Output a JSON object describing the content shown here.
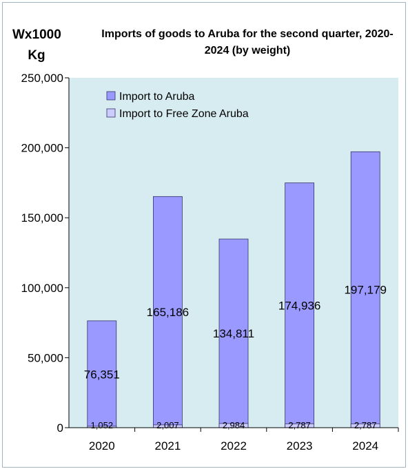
{
  "chart_data": {
    "type": "bar",
    "title": "Imports of goods to Aruba for the second quarter, 2020-2024 (by weight)",
    "ylabel": "Wx1000 Kg",
    "xlabel": "",
    "categories": [
      "2020",
      "2021",
      "2022",
      "2023",
      "2024"
    ],
    "series": [
      {
        "name": "Import to Aruba",
        "values": [
          76351,
          165186,
          134811,
          174936,
          197179
        ],
        "labels": [
          "76,351",
          "165,186",
          "134,811",
          "174,936",
          "197,179"
        ],
        "color": "#9999ff"
      },
      {
        "name": "Import to Free Zone Aruba",
        "values": [
          1052,
          2007,
          2984,
          2787,
          2787
        ],
        "labels": [
          "1,052",
          "2,007",
          "2,984",
          "2,787",
          "2,787"
        ],
        "color": "#ccccff"
      }
    ],
    "ylim": [
      0,
      250000
    ],
    "yticks": [
      "0",
      "50,000",
      "100,000",
      "150,000",
      "200,000",
      "250,000"
    ],
    "plot_background": "#d6ecf0",
    "legend_position": "top-left",
    "grid": false
  }
}
